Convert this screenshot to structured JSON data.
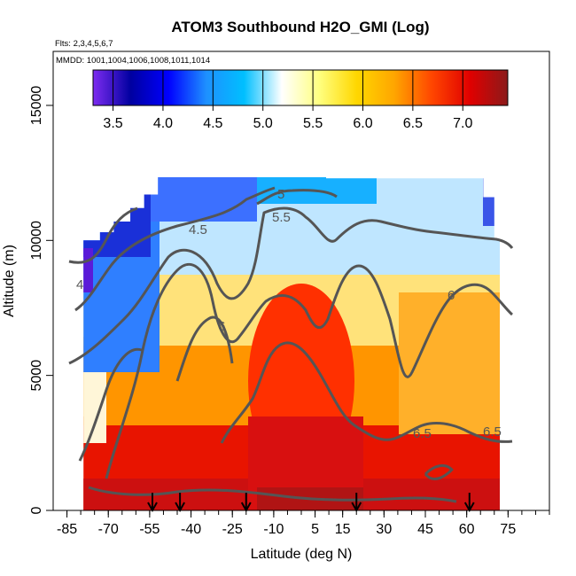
{
  "chart_data": {
    "type": "heatmap",
    "title": "ATOM3 Southbound H2O_GMI (Log)",
    "flights_label": "Flts: 2,3,4,5,6,7",
    "mmdd_label": "MMDD: 1001,1004,1006,1008,1011,1014",
    "xlabel": "Latitude (deg N)",
    "ylabel": "Altitude (m)",
    "xlim": [
      -90,
      90
    ],
    "ylim": [
      0,
      17000
    ],
    "x_ticks": [
      -85,
      -70,
      -55,
      -40,
      -25,
      -10,
      5,
      15,
      30,
      45,
      60,
      75
    ],
    "y_ticks": [
      0,
      5000,
      10000,
      15000
    ],
    "colorbar": {
      "range": [
        3.3,
        7.45
      ],
      "ticks": [
        3.5,
        4.0,
        4.5,
        5.0,
        5.5,
        6.0,
        6.5,
        7.0
      ],
      "colors": [
        "#7d2cf0",
        "#0000a0",
        "#0000ff",
        "#1e90ff",
        "#00bfff",
        "#ffffff",
        "#ffff80",
        "#ffd700",
        "#ffa500",
        "#ff4500",
        "#e00000",
        "#8b1a1a"
      ]
    },
    "contour_levels": [
      "4",
      "4.5",
      "5",
      "5.5",
      "6",
      "6",
      "6.5",
      "6.5"
    ],
    "sounding_latitudes": [
      -54,
      -44,
      -20,
      20,
      61
    ],
    "coverage": {
      "lat_range": [
        -79,
        72
      ],
      "top_altitude_by_lat": [
        [
          -79,
          10000
        ],
        [
          -73,
          10300
        ],
        [
          -68,
          10700
        ],
        [
          -62,
          11200
        ],
        [
          -57,
          11700
        ],
        [
          -52,
          12400
        ],
        [
          -20,
          12400
        ],
        [
          -19,
          12900
        ],
        [
          5,
          12900
        ],
        [
          9,
          12300
        ],
        [
          64,
          12300
        ],
        [
          66,
          11600
        ],
        [
          70,
          10000
        ],
        [
          72,
          9500
        ]
      ]
    }
  }
}
